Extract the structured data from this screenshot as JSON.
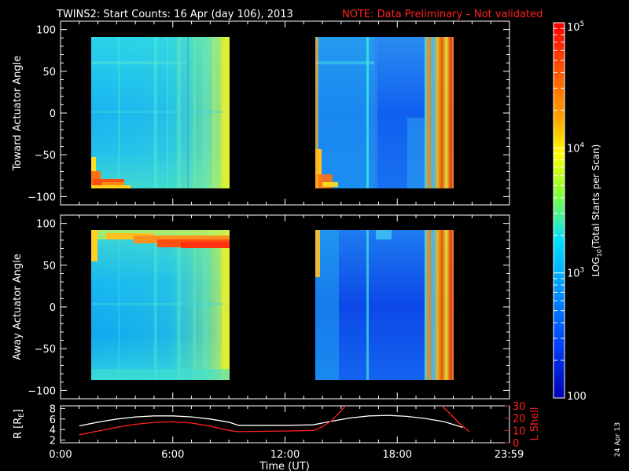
{
  "title": {
    "main": "TWINS2: Start Counts: 16 Apr (day 106), 2013",
    "note": "NOTE: Data Preliminary – Not validated",
    "note_color": "#ff2020"
  },
  "stamp": "24 Apr 13",
  "chart_data": [
    {
      "type": "heatmap",
      "id": "toward",
      "ylabel": "Toward Actuator Angle",
      "ylim": [
        -110,
        110
      ],
      "yticks": [
        100,
        50,
        0,
        -50,
        -100
      ],
      "ytick_labels": [
        "100",
        "50",
        "0",
        "−50",
        "−100"
      ],
      "xlim": [
        0,
        24
      ],
      "data_segments_hours": [
        [
          1.1,
          9.15
        ],
        [
          13.95,
          21.85
        ]
      ]
    },
    {
      "type": "heatmap",
      "id": "away",
      "ylabel": "Away Actuator Angle",
      "ylim": [
        -110,
        110
      ],
      "yticks": [
        100,
        50,
        0,
        -50,
        -100
      ],
      "ytick_labels": [
        "100",
        "50",
        "0",
        "−50",
        "−100"
      ],
      "xlim": [
        0,
        24
      ],
      "data_segments_hours": [
        [
          1.1,
          9.15
        ],
        [
          13.95,
          21.85
        ]
      ]
    },
    {
      "type": "line",
      "id": "orbit",
      "ylabel_left": "R [R",
      "ylabel_left_sub": "E",
      "ylabel_left_end": "]",
      "ylabel_right": "L Shell",
      "left_ylim": [
        1.5,
        8.5
      ],
      "left_yticks": [
        8,
        6,
        4,
        2
      ],
      "right_ylim": [
        0,
        30
      ],
      "right_yticks": [
        30,
        20,
        10,
        0
      ],
      "xlabel": "Time (UT)",
      "xlim": [
        0,
        24
      ],
      "xticks": [
        0,
        6,
        12,
        18,
        23.98
      ],
      "xtick_labels": [
        "0:00",
        "6:00",
        "12:00",
        "18:00",
        "23:59"
      ],
      "series": [
        {
          "name": "R [RE]",
          "axis": "left",
          "color": "#ffffff",
          "x": [
            1.0,
            2.0,
            3.0,
            4.0,
            5.0,
            6.0,
            7.0,
            8.0,
            9.0,
            9.5,
            12.0,
            13.5,
            14.5,
            15.5,
            16.5,
            17.5,
            18.5,
            19.5,
            20.5,
            21.5
          ],
          "y": [
            4.7,
            5.4,
            6.0,
            6.4,
            6.6,
            6.6,
            6.4,
            6.0,
            5.4,
            4.8,
            4.8,
            4.9,
            5.6,
            6.2,
            6.6,
            6.7,
            6.5,
            6.1,
            5.5,
            4.4
          ]
        },
        {
          "name": "L Shell",
          "axis": "right",
          "color": "#ff2020",
          "x": [
            1.0,
            2.0,
            3.0,
            4.0,
            5.0,
            6.0,
            7.0,
            8.0,
            9.0,
            9.5,
            12.0,
            13.5,
            14.0,
            14.5,
            15.0,
            15.3
          ],
          "y": [
            6.5,
            9.5,
            12.5,
            15.0,
            16.5,
            17.0,
            16.0,
            13.5,
            10.0,
            9.0,
            9.5,
            10.0,
            13.0,
            18.0,
            26.0,
            31.0
          ]
        },
        {
          "name": "L Shell (late)",
          "axis": "right",
          "color": "#ff2020",
          "x": [
            20.3,
            20.8,
            21.3,
            21.85
          ],
          "y": [
            31.0,
            24.0,
            16.0,
            9.0
          ]
        }
      ]
    },
    {
      "type": "colorbar",
      "id": "colorbar",
      "label_prefix": "LOG",
      "label_sub": "10",
      "label_suffix": "(Total Starts per Scan)",
      "range": [
        100,
        100000
      ],
      "tick_labels": [
        {
          "value": 100000,
          "base": "10",
          "exp": "5"
        },
        {
          "value": 10000,
          "base": "10",
          "exp": "4"
        },
        {
          "value": 1000,
          "base": "10",
          "exp": "3"
        },
        {
          "value": 100,
          "base": "100",
          "exp": ""
        }
      ]
    }
  ]
}
